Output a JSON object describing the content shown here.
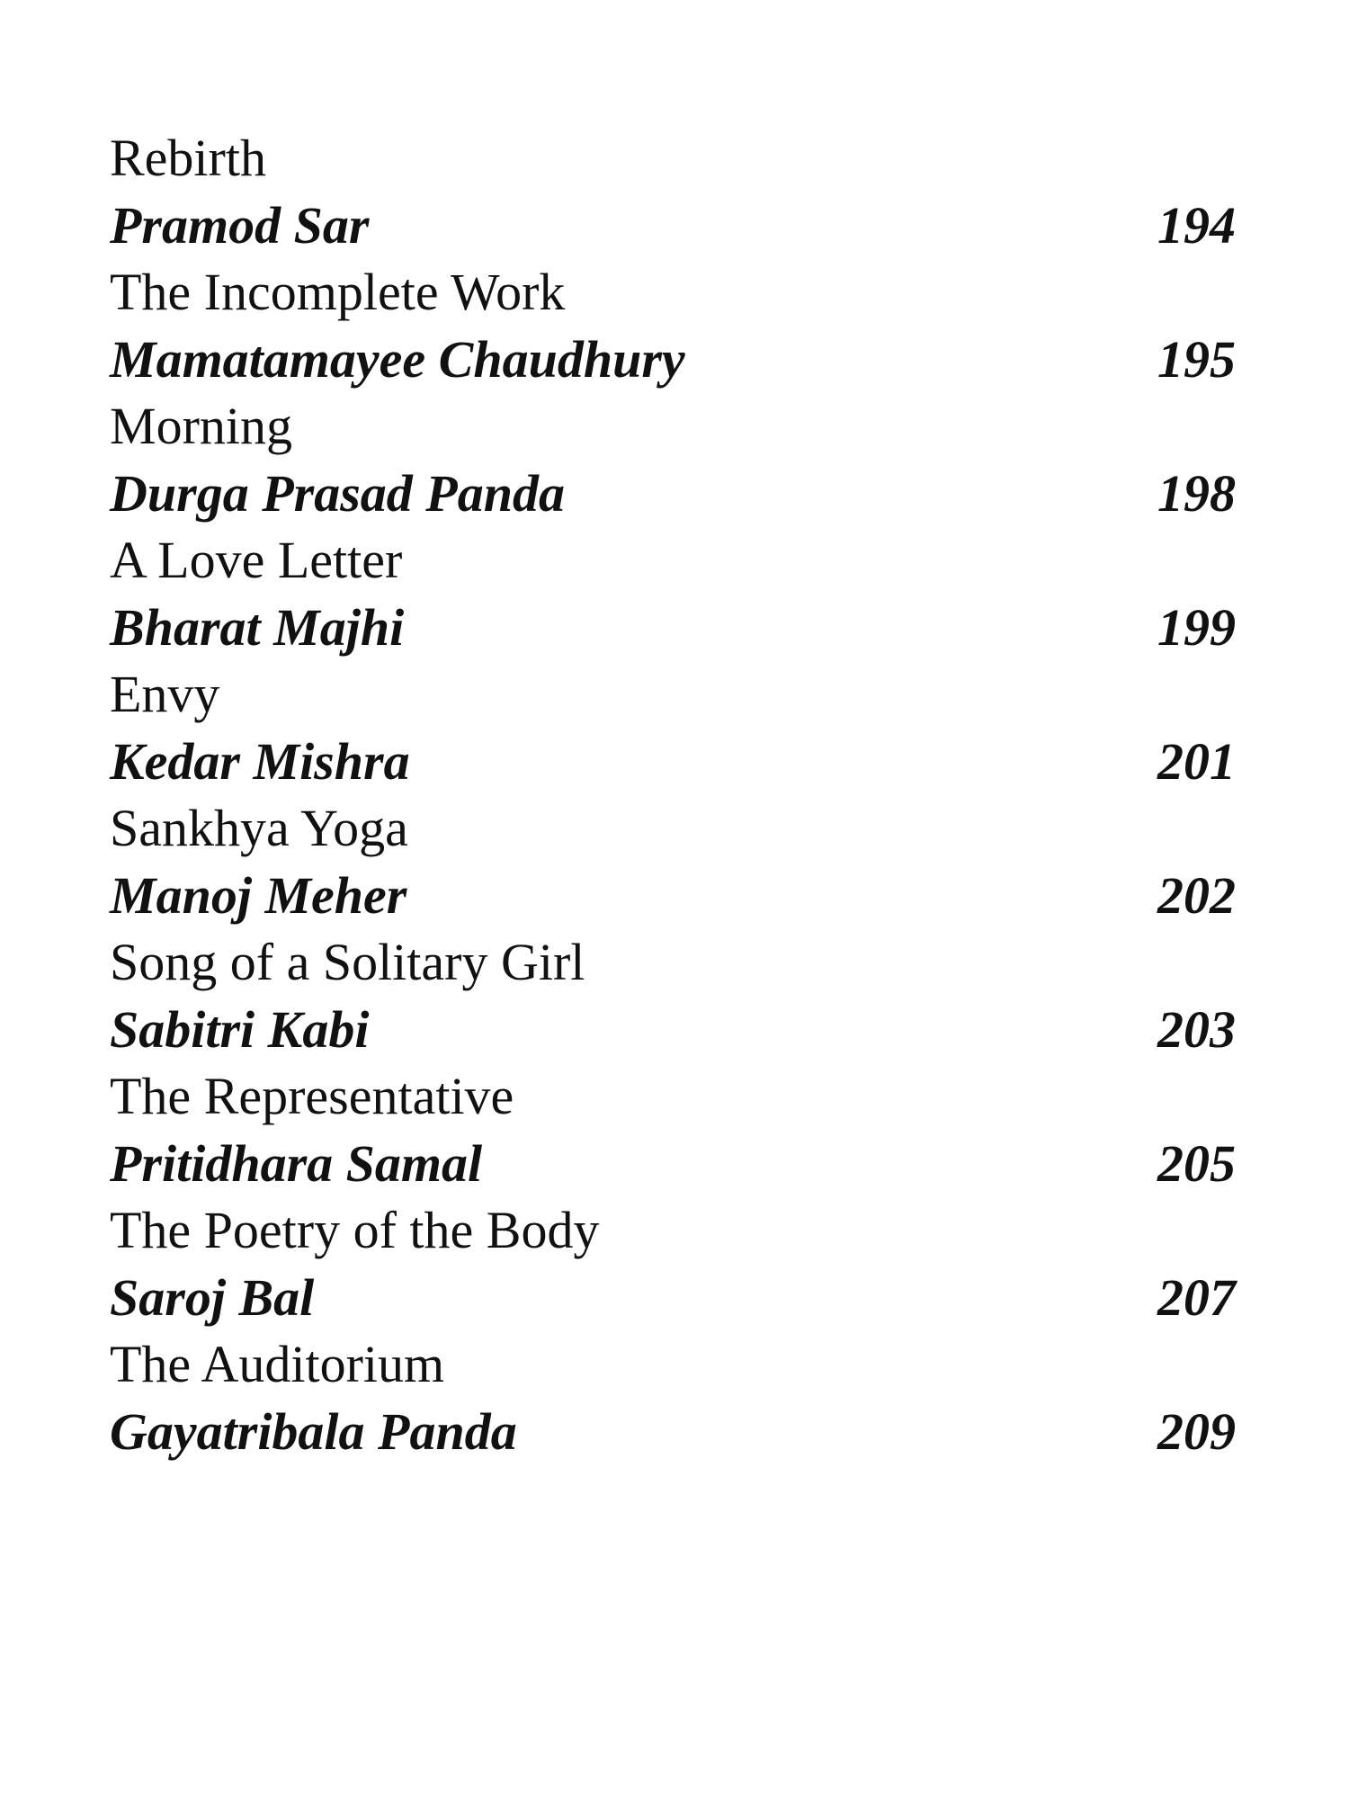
{
  "entries": [
    {
      "title": "Rebirth",
      "author": "Pramod Sar",
      "page": "194"
    },
    {
      "title": "The Incomplete Work",
      "author": "Mamatamayee Chaudhury",
      "page": "195"
    },
    {
      "title": "Morning",
      "author": "Durga Prasad Panda",
      "page": "198"
    },
    {
      "title": "A Love Letter",
      "author": "Bharat Majhi",
      "page": "199"
    },
    {
      "title": "Envy",
      "author": "Kedar Mishra",
      "page": "201"
    },
    {
      "title": "Sankhya Yoga",
      "author": "Manoj Meher",
      "page": "202"
    },
    {
      "title": "Song of a Solitary Girl",
      "author": "Sabitri Kabi",
      "page": "203"
    },
    {
      "title": "The Representative",
      "author": "Pritidhara Samal",
      "page": "205"
    },
    {
      "title": "The Poetry of the Body",
      "author": "Saroj Bal",
      "page": "207"
    },
    {
      "title": "The Auditorium",
      "author": "Gayatribala Panda",
      "page": "209"
    }
  ]
}
